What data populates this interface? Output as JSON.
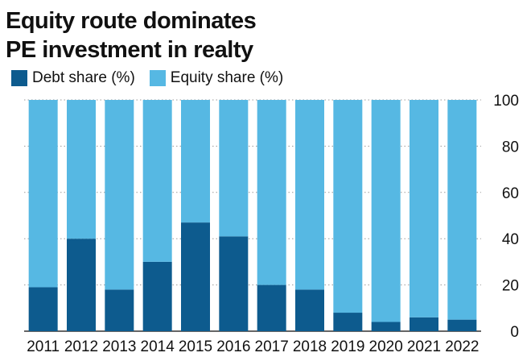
{
  "title_line1": "Equity route dominates",
  "title_line2": "PE investment in realty",
  "colors": {
    "debt": "#0d5b8e",
    "equity": "#56b8e3",
    "grid": "#9a9a9a"
  },
  "chart_data": {
    "type": "bar",
    "stacked": true,
    "categories": [
      "2011",
      "2012",
      "2013",
      "2014",
      "2015",
      "2016",
      "2017",
      "2018",
      "2019",
      "2020",
      "2021",
      "2022"
    ],
    "series": [
      {
        "name": "Debt share (%)",
        "values": [
          19,
          40,
          18,
          30,
          47,
          41,
          20,
          18,
          8,
          4,
          6,
          5
        ]
      },
      {
        "name": "Equity share (%)",
        "values": [
          81,
          60,
          82,
          70,
          53,
          59,
          80,
          82,
          92,
          96,
          94,
          95
        ]
      }
    ],
    "ylim": [
      0,
      100
    ],
    "yticks": [
      0,
      20,
      40,
      60,
      80,
      100
    ],
    "y_axis_side": "right",
    "grid": true,
    "legend": "top-left"
  }
}
